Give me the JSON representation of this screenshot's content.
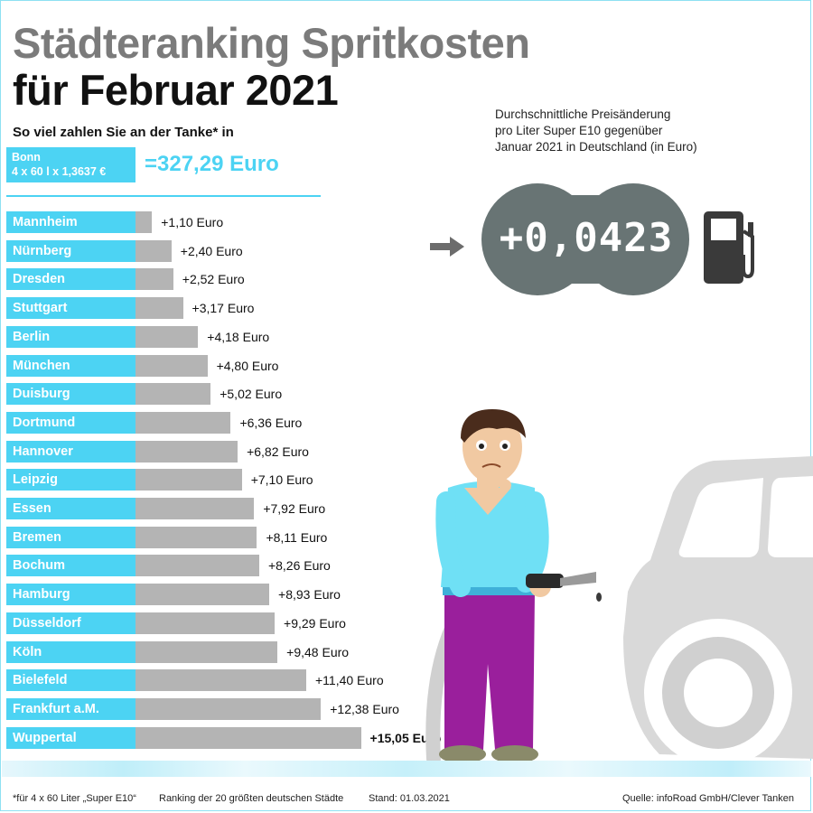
{
  "title_line1": "Städteranking Spritkosten",
  "title_line2": "für Februar 2021",
  "subtitle": "So viel zahlen Sie an der Tanke* in",
  "reference": {
    "city": "Bonn",
    "formula": "4 x 60 l x 1,3637 €",
    "total": "=327,29 Euro"
  },
  "info_lines": [
    "Durchschnittliche Preisänderung",
    "pro Liter Super E10 gegenüber",
    "Januar 2021 in Deutschland (in Euro)"
  ],
  "highlight_value": "+0,0423",
  "chart_data": {
    "type": "bar",
    "orientation": "horizontal",
    "unit": "Euro",
    "categories": [
      "Mannheim",
      "Nürnberg",
      "Dresden",
      "Stuttgart",
      "Berlin",
      "München",
      "Duisburg",
      "Dortmund",
      "Hannover",
      "Leipzig",
      "Essen",
      "Bremen",
      "Bochum",
      "Hamburg",
      "Düsseldorf",
      "Köln",
      "Bielefeld",
      "Frankfurt a.M.",
      "Wuppertal"
    ],
    "values": [
      1.1,
      2.4,
      2.52,
      3.17,
      4.18,
      4.8,
      5.02,
      6.36,
      6.82,
      7.1,
      7.92,
      8.11,
      8.26,
      8.93,
      9.29,
      9.48,
      11.4,
      12.38,
      15.05
    ],
    "labels": [
      "+1,10 Euro",
      "+2,40 Euro",
      "+2,52 Euro",
      "+3,17 Euro",
      "+4,18 Euro",
      "+4,80 Euro",
      "+5,02 Euro",
      "+6,36 Euro",
      "+6,82 Euro",
      "+7,10 Euro",
      "+7,92 Euro",
      "+8,11 Euro",
      "+8,26 Euro",
      "+8,93 Euro",
      "+9,29 Euro",
      "+9,48 Euro",
      "+11,40 Euro",
      "+12,38 Euro",
      "+15,05 Euro"
    ],
    "highlighted": "Wuppertal"
  },
  "footer": {
    "note": "*für 4 x 60 Liter „Super E10“",
    "ranking": "Ranking der 20 größten deutschen Städte",
    "date": "Stand: 01.03.2021",
    "source": "Quelle: infoRoad GmbH/Clever Tanken"
  },
  "colors": {
    "accent": "#4cd3f3",
    "bar": "#b4b4b4",
    "title_gray": "#7b7b7b",
    "display": "#687474"
  },
  "icons": [
    "arrow-right-icon",
    "fuel-pump-icon"
  ]
}
